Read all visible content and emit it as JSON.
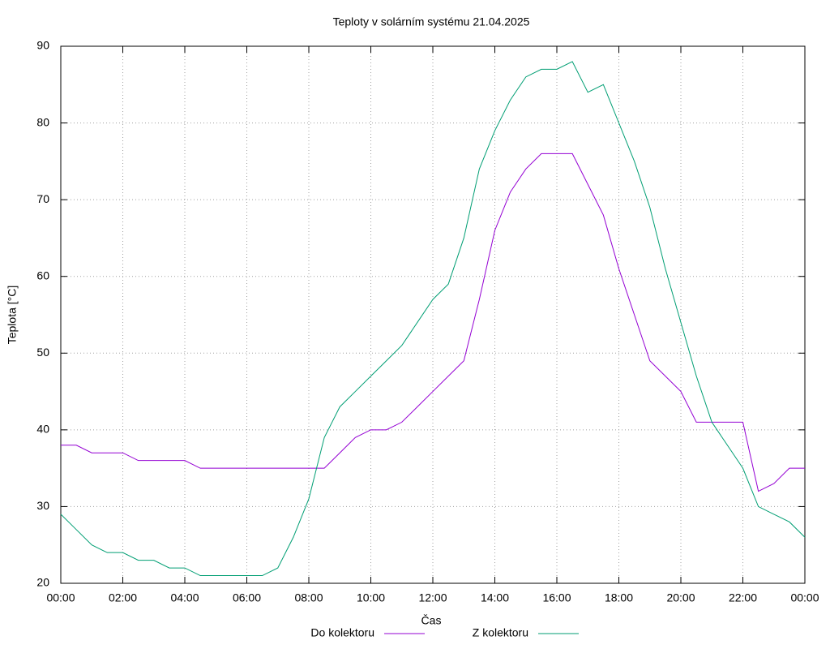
{
  "chart_data": {
    "type": "line",
    "title": "Teploty v solárním systému 21.04.2025",
    "x_label": "Čas",
    "y_label": "Teplota [°C]",
    "x": [
      0,
      0.5,
      1,
      1.5,
      2,
      2.5,
      3,
      3.5,
      4,
      4.5,
      5,
      5.5,
      6,
      6.5,
      7,
      7.5,
      8,
      8.5,
      9,
      9.5,
      10,
      10.5,
      11,
      11.5,
      12,
      12.5,
      13,
      13.5,
      14,
      14.5,
      15,
      15.5,
      16,
      16.5,
      17,
      17.5,
      18,
      18.5,
      19,
      19.5,
      20,
      20.5,
      21,
      21.5,
      22,
      22.5,
      23,
      23.5,
      24
    ],
    "series": [
      {
        "name": "Do kolektoru",
        "color": "#9400d3",
        "values": [
          38,
          38,
          37,
          37,
          37,
          36,
          36,
          36,
          36,
          35,
          35,
          35,
          35,
          35,
          35,
          35,
          35,
          35,
          37,
          39,
          40,
          40,
          41,
          43,
          45,
          47,
          49,
          57,
          66,
          71,
          74,
          76,
          76,
          76,
          72,
          68,
          61,
          55,
          49,
          47,
          45,
          41,
          41,
          41,
          41,
          32,
          33,
          35,
          35
        ]
      },
      {
        "name": "Z kolektoru",
        "color": "#009e73",
        "values": [
          29,
          27,
          25,
          24,
          24,
          23,
          23,
          22,
          22,
          21,
          21,
          21,
          21,
          21,
          22,
          26,
          31,
          39,
          43,
          45,
          47,
          49,
          51,
          54,
          57,
          59,
          65,
          74,
          79,
          83,
          86,
          87,
          87,
          88,
          84,
          85,
          80,
          75,
          69,
          61,
          54,
          47,
          41,
          38,
          35,
          30,
          29,
          28,
          26
        ]
      }
    ],
    "xlim": [
      0,
      24
    ],
    "xticks": [
      {
        "value": 0,
        "label": "00:00"
      },
      {
        "value": 2,
        "label": "02:00"
      },
      {
        "value": 4,
        "label": "04:00"
      },
      {
        "value": 6,
        "label": "06:00"
      },
      {
        "value": 8,
        "label": "08:00"
      },
      {
        "value": 10,
        "label": "10:00"
      },
      {
        "value": 12,
        "label": "12:00"
      },
      {
        "value": 14,
        "label": "14:00"
      },
      {
        "value": 16,
        "label": "16:00"
      },
      {
        "value": 18,
        "label": "18:00"
      },
      {
        "value": 20,
        "label": "20:00"
      },
      {
        "value": 22,
        "label": "22:00"
      },
      {
        "value": 24,
        "label": "00:00"
      }
    ],
    "ylim": [
      20,
      90
    ],
    "yticks": [
      20,
      30,
      40,
      50,
      60,
      70,
      80,
      90
    ],
    "grid": true,
    "legend": "bottom"
  }
}
